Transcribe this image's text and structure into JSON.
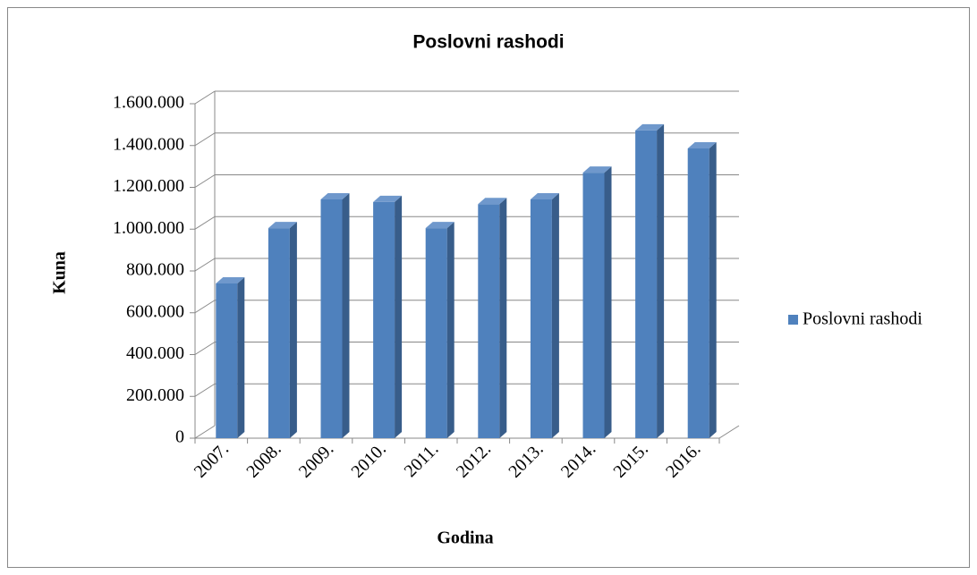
{
  "chart_data": {
    "type": "bar3d",
    "title": "Poslovni rashodi",
    "x_label": "Godina",
    "y_label": "Kuna",
    "categories": [
      "2007.",
      "2008.",
      "2009.",
      "2010.",
      "2011.",
      "2012.",
      "2013.",
      "2014.",
      "2015.",
      "2016."
    ],
    "series": [
      {
        "name": "Poslovni rashodi",
        "color": "#4f81bd",
        "values": [
          740000,
          1005000,
          1142000,
          1130000,
          1005000,
          1120000,
          1142000,
          1270000,
          1472000,
          1386000
        ]
      }
    ],
    "ylim": [
      0,
      1600000
    ],
    "yticks": [
      0,
      {
        "value": 200000,
        "label": "200.000"
      },
      {
        "value": 400000,
        "label": "400.000"
      },
      {
        "value": 600000,
        "label": "600.000"
      },
      {
        "value": 800000,
        "label": "800.000"
      },
      {
        "value": 1000000,
        "label": "1.000.000"
      },
      {
        "value": 1200000,
        "label": "1.200.000"
      },
      {
        "value": 1400000,
        "label": "1.400.000"
      },
      {
        "value": 1600000,
        "label": "1.600.000"
      }
    ],
    "grid": true,
    "legend": "right"
  }
}
